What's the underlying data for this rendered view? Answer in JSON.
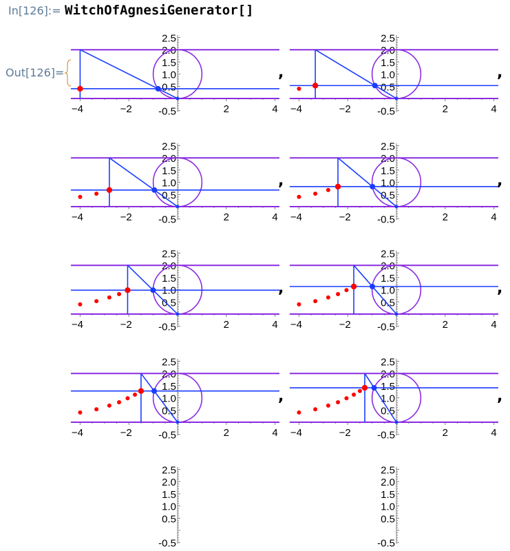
{
  "cell": {
    "in_label": "In[126]:=",
    "input_code": "WitchOfAgnesiGenerator[]",
    "out_label": "Out[126]=",
    "separator": ","
  },
  "colors": {
    "circle_and_guides": "#8a2be2",
    "construction_lines": "#1a3cff",
    "witch_points": "#ff0000",
    "axes": "#808080",
    "label": "#5d7b98"
  },
  "chart_data": {
    "type": "scatter",
    "title": "",
    "xlim": [
      -4.38,
      4.18
    ],
    "ylim": [
      -0.55,
      2.6
    ],
    "x_ticks": [
      "-4",
      "-2",
      "2",
      "4"
    ],
    "y_ticks": [
      "2.5",
      "2.0",
      "1.5",
      "1.0",
      "0.5",
      "-0.5"
    ],
    "circle": {
      "center": [
        0,
        1
      ],
      "radius": 1
    },
    "guide_lines_y": [
      0,
      2
    ],
    "witch_points": [
      [
        -4,
        0.4
      ],
      [
        -3.33,
        0.53
      ],
      [
        -2.8,
        0.68
      ],
      [
        -2.4,
        0.82
      ],
      [
        -2.05,
        0.98
      ],
      [
        -1.75,
        1.13
      ],
      [
        -1.5,
        1.28
      ],
      [
        -1.3,
        1.41
      ]
    ],
    "frames_shown": 8,
    "grid": false
  }
}
